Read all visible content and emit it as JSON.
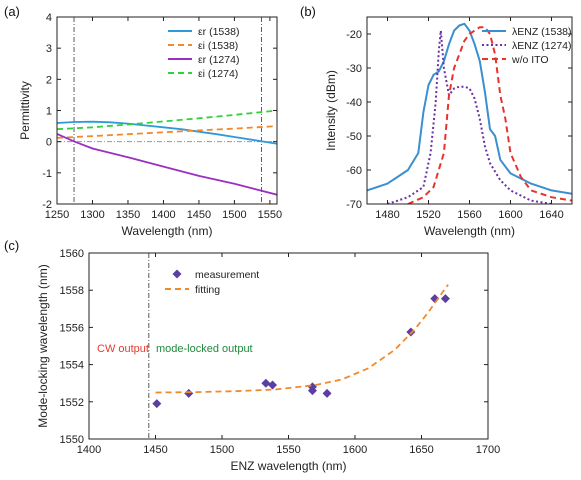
{
  "chart_data": [
    {
      "panel": "(a)",
      "type": "line",
      "xlabel": "Wavelength (nm)",
      "ylabel": "Permittivity",
      "xlim": [
        1250,
        1560
      ],
      "ylim": [
        -2,
        4
      ],
      "xticks": [
        1250,
        1300,
        1350,
        1400,
        1450,
        1500,
        1550
      ],
      "yticks": [
        -2,
        -1,
        0,
        1,
        2,
        3,
        4
      ],
      "vlines": [
        1274,
        1538
      ],
      "hline": 0,
      "legend": "top-right",
      "series": [
        {
          "name": "εr (1538)",
          "sub": "r",
          "num": "(1538)",
          "color": "#2f9ad9",
          "dash": "solid",
          "x": [
            1250,
            1275,
            1300,
            1325,
            1350,
            1375,
            1400,
            1425,
            1450,
            1475,
            1500,
            1525,
            1550,
            1560
          ],
          "y": [
            0.6,
            0.63,
            0.64,
            0.62,
            0.58,
            0.52,
            0.46,
            0.4,
            0.32,
            0.24,
            0.15,
            0.06,
            -0.03,
            -0.07
          ]
        },
        {
          "name": "εi (1538)",
          "sub": "i",
          "num": "(1538)",
          "color": "#f08a2c",
          "dash": "dashed",
          "x": [
            1250,
            1300,
            1350,
            1400,
            1450,
            1500,
            1560
          ],
          "y": [
            0.12,
            0.18,
            0.24,
            0.3,
            0.36,
            0.42,
            0.5
          ]
        },
        {
          "name": "εr (1274)",
          "sub": "r",
          "num": "(1274)",
          "color": "#9a2fc2",
          "dash": "solid",
          "x": [
            1250,
            1275,
            1300,
            1350,
            1400,
            1450,
            1500,
            1560
          ],
          "y": [
            0.25,
            0.0,
            -0.22,
            -0.5,
            -0.8,
            -1.1,
            -1.35,
            -1.7
          ]
        },
        {
          "name": "εi (1274)",
          "sub": "i",
          "num": "(1274)",
          "color": "#2fd23a",
          "dash": "dashed",
          "x": [
            1250,
            1300,
            1350,
            1400,
            1450,
            1500,
            1560
          ],
          "y": [
            0.4,
            0.46,
            0.55,
            0.65,
            0.75,
            0.86,
            1.0
          ]
        }
      ]
    },
    {
      "panel": "(b)",
      "type": "line",
      "xlabel": "Wavelength (nm)",
      "ylabel": "Intensity (dBm)",
      "xlim": [
        1460,
        1660
      ],
      "ylim": [
        -70,
        -15
      ],
      "xticks": [
        1480,
        1520,
        1560,
        1600,
        1640
      ],
      "yticks": [
        -70,
        -60,
        -50,
        -40,
        -30,
        -20
      ],
      "legend": "top-right",
      "series": [
        {
          "name": "λENZ (1538)",
          "color": "#3a8fd0",
          "dash": "solid",
          "x": [
            1460,
            1480,
            1500,
            1510,
            1515,
            1520,
            1525,
            1530,
            1535,
            1540,
            1545,
            1550,
            1555,
            1560,
            1565,
            1570,
            1575,
            1580,
            1585,
            1590,
            1600,
            1620,
            1640,
            1660
          ],
          "y": [
            -66,
            -64,
            -60,
            -55,
            -43,
            -35,
            -32,
            -31,
            -28,
            -23,
            -19,
            -17.5,
            -17,
            -19,
            -23,
            -28,
            -37,
            -48,
            -50,
            -57,
            -61,
            -64,
            -66,
            -67
          ]
        },
        {
          "name": "λENZ (1274)",
          "color": "#6a2fa0",
          "dash": "dotted",
          "x": [
            1480,
            1500,
            1515,
            1522,
            1527,
            1530,
            1532,
            1535,
            1540,
            1545,
            1550,
            1555,
            1560,
            1565,
            1570,
            1575,
            1580,
            1590,
            1600,
            1620,
            1640
          ],
          "y": [
            -70,
            -68,
            -65,
            -55,
            -40,
            -25,
            -19,
            -30,
            -38,
            -36,
            -35.5,
            -35.5,
            -36,
            -39,
            -45,
            -53,
            -58,
            -63,
            -66,
            -69,
            -70
          ]
        },
        {
          "name": "w/o ITO",
          "color": "#e8332c",
          "dash": "dashed",
          "x": [
            1500,
            1515,
            1525,
            1535,
            1540,
            1545,
            1550,
            1555,
            1560,
            1565,
            1570,
            1575,
            1580,
            1585,
            1590,
            1595,
            1600,
            1610,
            1620,
            1640,
            1660
          ],
          "y": [
            -70,
            -68,
            -65,
            -55,
            -38,
            -30,
            -26,
            -22,
            -20,
            -19,
            -18,
            -18,
            -20,
            -26,
            -38,
            -45,
            -55,
            -62,
            -66,
            -68,
            -69
          ]
        }
      ]
    },
    {
      "panel": "(c)",
      "type": "scatter",
      "xlabel": "ENZ wavelength (nm)",
      "ylabel": "Mode-locking wavelength (nm)",
      "xlim": [
        1400,
        1700
      ],
      "ylim": [
        1550,
        1560
      ],
      "xticks": [
        1400,
        1450,
        1500,
        1550,
        1600,
        1650,
        1700
      ],
      "yticks": [
        1550,
        1552,
        1554,
        1556,
        1558,
        1560
      ],
      "vline": 1445,
      "legend": "top-left",
      "annotations": [
        {
          "text": "CW output",
          "color": "#e63a2e"
        },
        {
          "text": "mode-locked output",
          "color": "#1f8a3a"
        }
      ],
      "series": [
        {
          "name": "measurement",
          "color": "#5b3ea3",
          "marker": "diamond",
          "x": [
            1451,
            1475,
            1533,
            1538,
            1568,
            1568,
            1579,
            1642,
            1660,
            1668
          ],
          "y": [
            1551.9,
            1552.45,
            1553.0,
            1552.9,
            1552.8,
            1552.6,
            1552.45,
            1555.75,
            1557.55,
            1557.55
          ]
        },
        {
          "name": "fitting",
          "color": "#f08a2c",
          "dash": "dashed",
          "x": [
            1450,
            1480,
            1510,
            1540,
            1570,
            1590,
            1610,
            1630,
            1645,
            1655,
            1665,
            1670
          ],
          "y": [
            1552.5,
            1552.52,
            1552.57,
            1552.66,
            1552.9,
            1553.2,
            1553.8,
            1554.8,
            1555.9,
            1556.8,
            1557.8,
            1558.3
          ]
        }
      ]
    }
  ]
}
